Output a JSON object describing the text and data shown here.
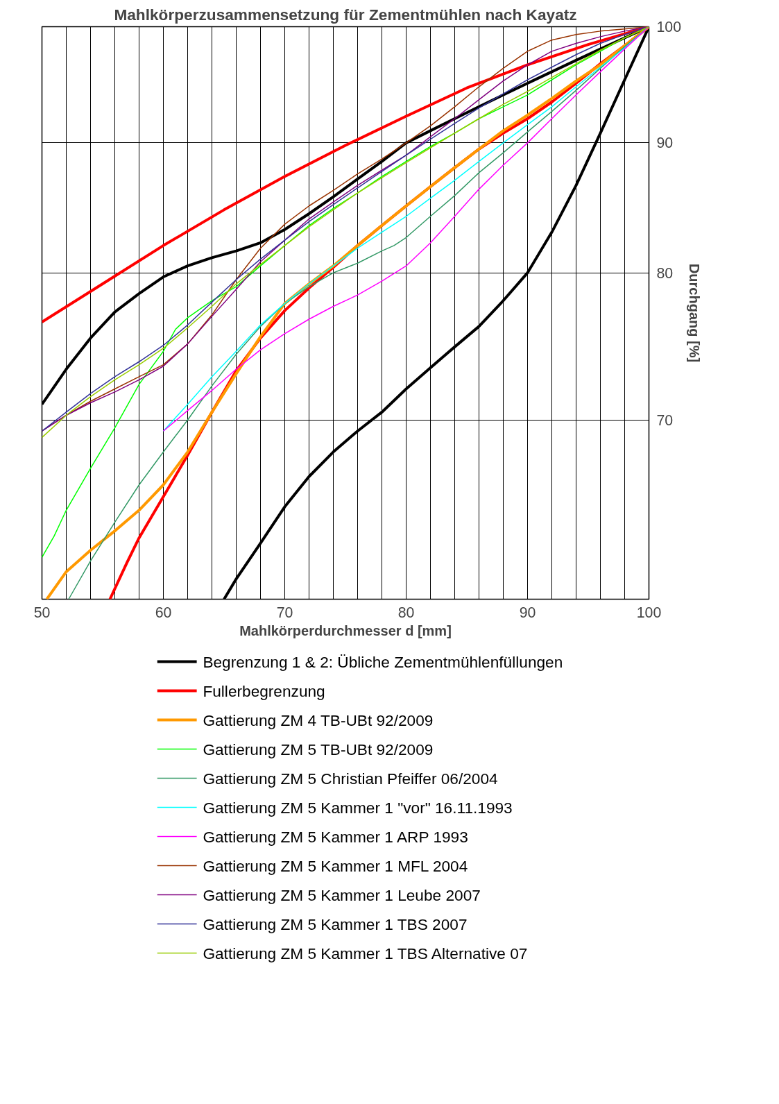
{
  "chart_data": {
    "type": "line",
    "title": "Mahlkörperzusammensetzung für Zementmühlen nach Kayatz",
    "xlabel": "Mahlkörperdurchmesser d [mm]",
    "ylabel": "Durchgang [%]",
    "log": "y",
    "xlim": [
      50,
      100
    ],
    "ylim": [
      59.5,
      100
    ],
    "xticks": [
      50,
      {
        "value": 52,
        "label": null
      },
      {
        "value": 54,
        "label": null
      },
      {
        "value": 56,
        "label": null
      },
      {
        "value": 58,
        "label": null
      },
      60,
      {
        "value": 62,
        "label": null
      },
      {
        "value": 64,
        "label": null
      },
      {
        "value": 66,
        "label": null
      },
      {
        "value": 68,
        "label": null
      },
      70,
      {
        "value": 72,
        "label": null
      },
      {
        "value": 74,
        "label": null
      },
      {
        "value": 76,
        "label": null
      },
      {
        "value": 78,
        "label": null
      },
      80,
      {
        "value": 82,
        "label": null
      },
      {
        "value": 84,
        "label": null
      },
      {
        "value": 86,
        "label": null
      },
      {
        "value": 88,
        "label": null
      },
      90,
      {
        "value": 92,
        "label": null
      },
      {
        "value": 94,
        "label": null
      },
      {
        "value": 96,
        "label": null
      },
      {
        "value": 98,
        "label": null
      },
      100
    ],
    "yticks": [
      70,
      80,
      90,
      100
    ],
    "grid": true,
    "legend": "bottom",
    "series": [
      {
        "name": "Begrenzung 1 & 2: Übliche Zementmühlenfüllungen",
        "color": "#000000",
        "x": [
          50,
          52,
          54,
          56,
          58,
          60,
          62,
          64,
          66,
          68,
          70,
          72,
          74,
          76,
          78,
          80,
          82,
          84,
          86,
          88,
          90,
          92,
          94,
          96,
          98,
          100
        ],
        "values": [
          71,
          73.3,
          75.4,
          77.2,
          78.5,
          79.7,
          80.5,
          81.1,
          81.6,
          82.2,
          83.2,
          84.4,
          85.7,
          87.1,
          88.5,
          90,
          91,
          92,
          93,
          94,
          95,
          96,
          97,
          98,
          99,
          100
        ]
      },
      {
        "color": "#000000",
        "x": [
          65,
          66,
          68,
          70,
          72,
          74,
          76,
          78,
          80,
          82,
          84,
          86,
          88,
          90,
          92,
          94,
          96,
          98,
          100
        ],
        "values": [
          59.5,
          60.6,
          62.6,
          64.7,
          66.5,
          68,
          69.3,
          70.5,
          72,
          73.4,
          74.8,
          76.2,
          78,
          80,
          83,
          86.6,
          90.8,
          95.3,
          100
        ]
      },
      {
        "name": "Fullerbegrenzung",
        "color": "#ff0000",
        "x": [
          50,
          55,
          60,
          65,
          70,
          75,
          80,
          85,
          90,
          95,
          100
        ],
        "values": [
          76.5,
          79.2,
          82,
          84.7,
          87.3,
          89.8,
          92.2,
          94.6,
          96.6,
          98.4,
          100
        ]
      },
      {
        "color": "#ff0000",
        "x": [
          55.6,
          57,
          58,
          60,
          62,
          64,
          66,
          68,
          70,
          72,
          74,
          76,
          78,
          80,
          82,
          84,
          86,
          88,
          90,
          92,
          94,
          96,
          98,
          100
        ],
        "values": [
          59.5,
          61.5,
          62.9,
          65.3,
          67.8,
          70.5,
          73.2,
          75.4,
          77.3,
          78.9,
          80.4,
          82,
          83.5,
          85,
          86.5,
          88,
          89.5,
          90.8,
          92,
          93.4,
          95,
          96.7,
          98.3,
          100
        ]
      },
      {
        "name": "Gattierung ZM 4 TB-UBt 92/2009",
        "color": "#ff9900",
        "x": [
          50.4,
          52,
          54,
          56,
          58,
          60,
          62,
          64,
          66,
          68,
          70,
          72,
          74,
          76,
          78,
          80,
          82,
          84,
          86,
          88,
          90,
          92,
          94,
          96,
          98,
          100
        ],
        "values": [
          59.5,
          61,
          62.2,
          63.3,
          64.5,
          66,
          68,
          70.5,
          73,
          75.5,
          77.8,
          79.2,
          80.5,
          82,
          83.5,
          85,
          86.5,
          88,
          89.5,
          91,
          92.3,
          93.7,
          95.2,
          96.6,
          98.3,
          100
        ]
      },
      {
        "name": "Gattierung ZM 5 TB-UBt 92/2009",
        "color": "#00ff00",
        "x": [
          50,
          51,
          52,
          54,
          56,
          58,
          60,
          61,
          62,
          64,
          66,
          68,
          70,
          72,
          74,
          76,
          78,
          80,
          82,
          84,
          86,
          88,
          90,
          92,
          94,
          96,
          98,
          100
        ],
        "values": [
          61.8,
          63,
          64.5,
          67,
          69.5,
          72.3,
          74.5,
          76,
          76.8,
          78,
          79,
          80.5,
          82,
          83.5,
          84.8,
          86,
          87.3,
          88.5,
          89.7,
          90.8,
          92,
          93,
          94,
          95.3,
          96.6,
          97.8,
          99,
          100
        ]
      },
      {
        "name": "Gattierung ZM 5 Christian Pfeiffer 06/2004",
        "color": "#339966",
        "x": [
          52.2,
          54,
          56,
          58,
          60,
          62,
          64,
          66,
          68,
          70,
          72,
          74,
          76,
          78,
          79,
          80,
          82,
          84,
          86,
          88,
          90,
          92,
          94,
          96,
          98,
          100
        ],
        "values": [
          59.5,
          61.6,
          63.8,
          66,
          68,
          70,
          72.2,
          74.3,
          76.2,
          77.8,
          79,
          80,
          80.7,
          81.6,
          82,
          82.6,
          84.2,
          85.8,
          87.6,
          89.2,
          90.9,
          92.6,
          94.4,
          96.3,
          98.2,
          100
        ]
      },
      {
        "name": "Gattierung ZM 5 Kammer 1 \"vor\" 16.11.1993",
        "color": "#00ffff",
        "x": [
          60,
          62,
          64,
          66,
          68,
          70,
          72,
          74,
          76,
          78,
          80,
          82,
          84,
          86,
          88,
          90,
          92,
          94,
          96,
          98,
          100
        ],
        "values": [
          69.3,
          71,
          72.8,
          74.5,
          76.3,
          77.8,
          79.2,
          80.5,
          81.8,
          83,
          84.2,
          85.6,
          87,
          88.5,
          90,
          91.5,
          93,
          94.7,
          96.4,
          98.1,
          100
        ]
      },
      {
        "name": "Gattierung ZM 5 Kammer 1 ARP 1993",
        "color": "#ff00ff",
        "x": [
          60,
          62,
          64,
          66,
          68,
          70,
          72,
          74,
          76,
          78,
          80,
          82,
          84,
          86,
          88,
          90,
          92,
          94,
          96,
          98,
          100
        ],
        "values": [
          69.3,
          70.6,
          71.9,
          73.3,
          74.6,
          75.7,
          76.7,
          77.6,
          78.4,
          79.4,
          80.5,
          82.2,
          84.2,
          86.3,
          88.2,
          90,
          92,
          94,
          96,
          98,
          100
        ]
      },
      {
        "name": "Gattierung ZM 5 Kammer 1 MFL 2004",
        "color": "#993300",
        "x": [
          50,
          52,
          54,
          56,
          58,
          60,
          62,
          64,
          66,
          68,
          70,
          72,
          74,
          76,
          78,
          80,
          82,
          84,
          86,
          88,
          90,
          92,
          94,
          96,
          98,
          100
        ],
        "values": [
          69.3,
          70.3,
          71.2,
          72,
          72.8,
          73.6,
          75,
          77,
          79.5,
          81.8,
          83.6,
          85,
          86.2,
          87.5,
          88.7,
          90,
          91.4,
          93,
          94.7,
          96.3,
          97.8,
          98.8,
          99.3,
          99.6,
          99.8,
          100
        ]
      },
      {
        "name": "Gattierung ZM 5 Kammer 1 Leube 2007",
        "color": "#800080",
        "x": [
          50,
          52,
          54,
          56,
          58,
          60,
          62,
          64,
          66,
          68,
          70,
          72,
          74,
          76,
          78,
          80,
          82,
          84,
          86,
          88,
          90,
          92,
          94,
          96,
          98,
          100
        ],
        "values": [
          69.3,
          70.3,
          71.1,
          71.8,
          72.6,
          73.5,
          75,
          76.9,
          78.8,
          80.8,
          82.4,
          84,
          85.3,
          86.6,
          87.8,
          89,
          90.5,
          92,
          93.6,
          95.2,
          96.6,
          97.8,
          98.5,
          99.1,
          99.6,
          100
        ]
      },
      {
        "name": "Gattierung ZM 5 Kammer 1 TBS 2007",
        "color": "#333399",
        "x": [
          50,
          52,
          54,
          56,
          58,
          60,
          62,
          64,
          66,
          68,
          70,
          72,
          74,
          76,
          78,
          80,
          82,
          84,
          86,
          88,
          90,
          92,
          94,
          96,
          98,
          100
        ],
        "values": [
          69.3,
          70.5,
          71.7,
          72.8,
          73.8,
          74.9,
          76.3,
          77.9,
          79.5,
          81,
          82.4,
          83.8,
          85.1,
          86.4,
          87.7,
          89,
          90.3,
          91.6,
          92.9,
          94.1,
          95.3,
          96.4,
          97.5,
          98.5,
          99.3,
          100
        ]
      },
      {
        "name": "Gattierung ZM 5 Kammer 1 TBS Alternative 07",
        "color": "#99cc00",
        "x": [
          50,
          52,
          54,
          56,
          58,
          60,
          62,
          64,
          66,
          68,
          70,
          72,
          74,
          76,
          78,
          80,
          82,
          84,
          86,
          88,
          90,
          92,
          94,
          96,
          98,
          100
        ],
        "values": [
          68.9,
          70.3,
          71.5,
          72.6,
          73.6,
          74.7,
          76.1,
          77.6,
          79.2,
          80.6,
          82,
          83.4,
          84.7,
          86,
          87.2,
          88.4,
          89.6,
          90.8,
          92,
          93.2,
          94.3,
          95.5,
          96.7,
          97.9,
          99,
          100
        ]
      }
    ]
  }
}
